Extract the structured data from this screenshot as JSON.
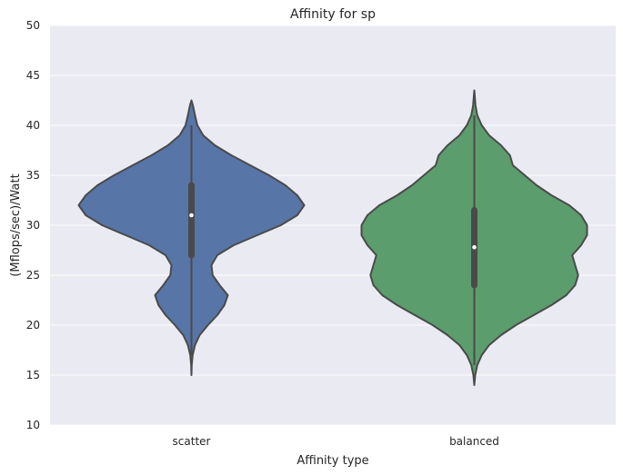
{
  "chart_data": {
    "type": "violin",
    "title": "Affinity for sp",
    "xlabel": "Affinity type",
    "ylabel": "(Mflops/sec)/Watt",
    "ylim": [
      10,
      50
    ],
    "yticks": [
      10,
      15,
      20,
      25,
      30,
      35,
      40,
      45,
      50
    ],
    "grid": true,
    "background": "#eaeaf2",
    "categories": [
      "scatter",
      "balanced"
    ],
    "series": [
      {
        "category": "scatter",
        "color": "#5875a8",
        "density_y": [
          15.0,
          16.0,
          17.0,
          18.0,
          19.0,
          20.0,
          21.0,
          22.0,
          23.0,
          24.0,
          25.0,
          26.0,
          27.0,
          28.0,
          29.0,
          30.0,
          31.0,
          32.0,
          33.0,
          34.0,
          35.0,
          36.0,
          37.0,
          38.0,
          39.0,
          40.0,
          41.0,
          42.0,
          42.5
        ],
        "density_width": [
          0.0,
          0.1,
          0.5,
          1.5,
          3.5,
          7.0,
          11.0,
          14.0,
          15.5,
          12.0,
          9.0,
          8.5,
          11.0,
          18.0,
          28.0,
          38.0,
          45.0,
          48.0,
          45.0,
          40.0,
          33.0,
          25.0,
          17.0,
          10.0,
          5.0,
          2.5,
          1.5,
          0.6,
          0.0
        ],
        "median": 31,
        "q1": 27,
        "q3": 34,
        "whisker_low": 17,
        "whisker_high": 40
      },
      {
        "category": "balanced",
        "color": "#5b9d6d",
        "density_y": [
          14.0,
          15.0,
          16.0,
          17.0,
          18.0,
          19.0,
          20.0,
          21.0,
          22.0,
          23.0,
          24.0,
          25.0,
          26.0,
          27.0,
          28.0,
          29.0,
          30.0,
          31.0,
          32.0,
          33.0,
          34.0,
          35.0,
          36.0,
          37.0,
          38.0,
          39.0,
          40.0,
          41.0,
          42.0,
          43.5
        ],
        "density_width": [
          0.0,
          0.3,
          1.0,
          2.5,
          5.0,
          9.0,
          14.0,
          20.0,
          26.0,
          31.0,
          34.0,
          35.0,
          34.0,
          33.0,
          36.0,
          38.0,
          38.0,
          36.0,
          32.0,
          26.0,
          21.0,
          17.0,
          13.0,
          12.0,
          9.0,
          5.0,
          2.5,
          1.0,
          0.4,
          0.0
        ],
        "median": 27.8,
        "q1": 24,
        "q3": 31.5,
        "whisker_low": 16,
        "whisker_high": 41
      }
    ]
  }
}
